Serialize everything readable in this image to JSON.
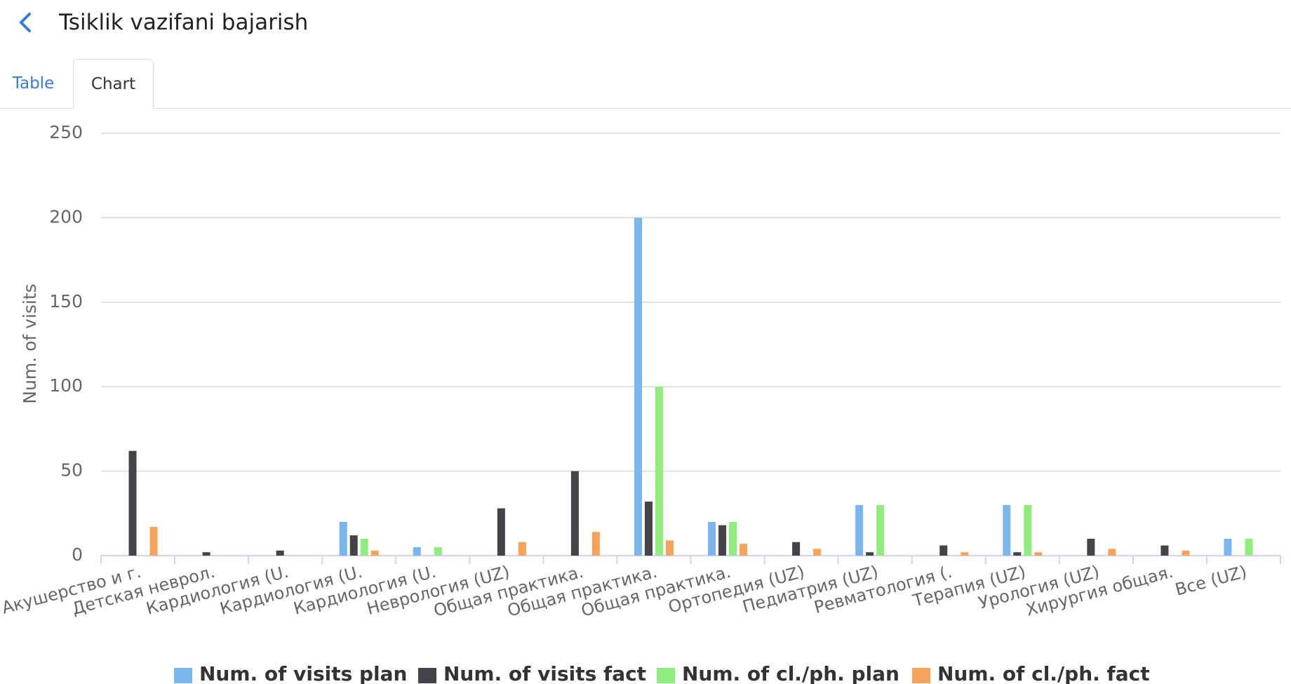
{
  "header": {
    "title": "Tsiklik vazifani bajarish"
  },
  "tabs": [
    "Table",
    "Chart"
  ],
  "chart_data": {
    "type": "bar",
    "y_label": "Num. of visits",
    "categories": [
      "Акушерство и г.",
      "Детская неврол.",
      "Кардиология (U.",
      "Кардиология (U.",
      "Кардиология (U.",
      "Неврология (UZ)",
      "Общая практика.",
      "Общая практика.",
      "Общая практика.",
      "Ортопедия (UZ)",
      "Педиатрия (UZ)",
      "Ревматология (.",
      "Терапия (UZ)",
      "Урология (UZ)",
      "Хирургия общая.",
      "Все (UZ)"
    ],
    "series": [
      {
        "name": "Num. of visits plan",
        "color": "#7cb5ec",
        "values": [
          0,
          0,
          0,
          20,
          5,
          0,
          0,
          200,
          20,
          0,
          30,
          0,
          30,
          0,
          0,
          10
        ]
      },
      {
        "name": "Num. of visits fact",
        "color": "#434348",
        "values": [
          62,
          2,
          3,
          12,
          0,
          28,
          50,
          32,
          18,
          8,
          2,
          6,
          2,
          10,
          6,
          0
        ]
      },
      {
        "name": "Num. of cl./ph. plan",
        "color": "#90ed7d",
        "values": [
          0,
          0,
          0,
          10,
          5,
          0,
          0,
          100,
          20,
          0,
          30,
          0,
          30,
          0,
          0,
          10
        ]
      },
      {
        "name": "Num. of cl./ph. fact",
        "color": "#f7a35c",
        "values": [
          17,
          0,
          0,
          3,
          0,
          8,
          14,
          9,
          7,
          4,
          0,
          2,
          2,
          4,
          3,
          0
        ]
      }
    ],
    "ylim": [
      0,
      250
    ],
    "yticks": [
      0,
      50,
      100,
      150,
      200,
      250
    ],
    "grid": true
  }
}
